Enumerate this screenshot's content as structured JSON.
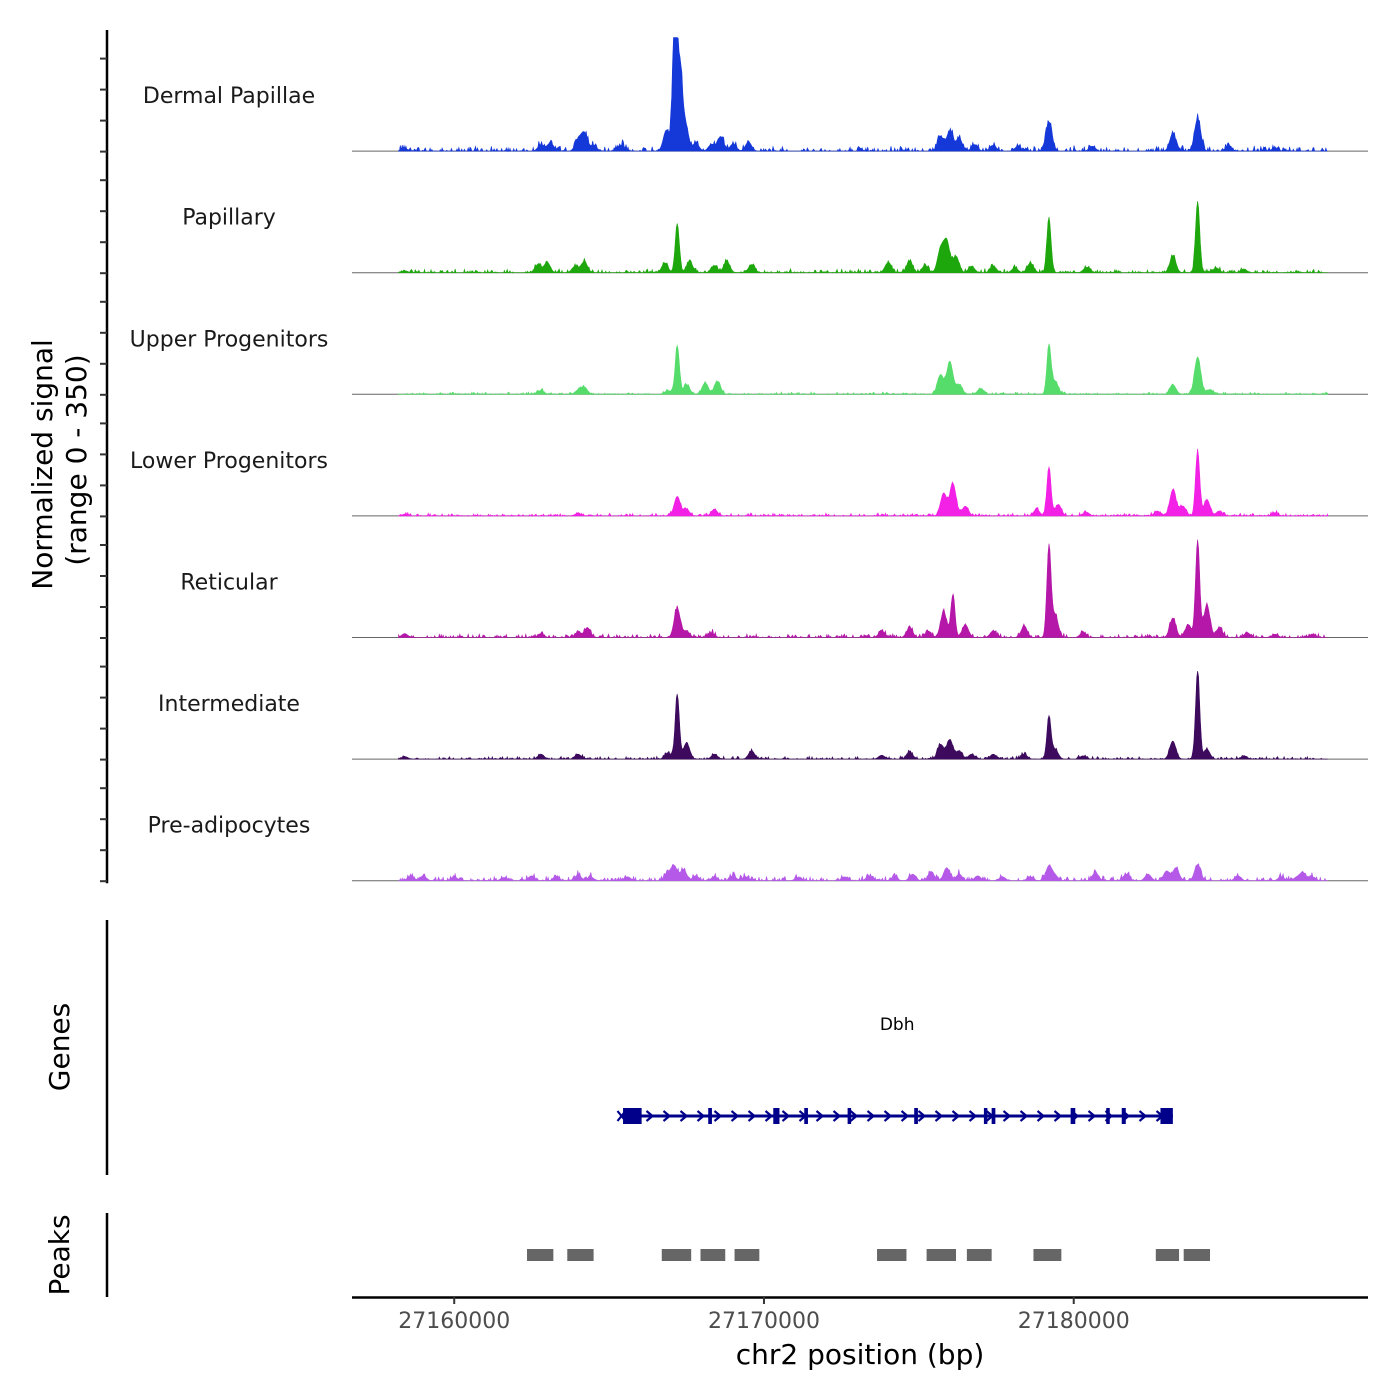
{
  "chart_data": {
    "type": "area",
    "title": "",
    "xlabel": "chr2 position (bp)",
    "ylabel": "Normalized signal\n(range 0 - 350)",
    "ylabel_lines": [
      "Normalized signal",
      "(range 0 - 350)"
    ],
    "ylim": [
      0,
      350
    ],
    "xlim": [
      27156700,
      27189500
    ],
    "x_ticks": [
      27160000,
      27170000,
      27180000
    ],
    "x_tick_labels": [
      "27160000",
      "27170000",
      "27180000"
    ],
    "series": [
      {
        "name": "Dermal Papillae",
        "color": "#1538d8",
        "peaks": [
          [
            27158400,
            8
          ],
          [
            27162800,
            20
          ],
          [
            27163100,
            25
          ],
          [
            27164000,
            35
          ],
          [
            27164200,
            55
          ],
          [
            27164500,
            18
          ],
          [
            27165400,
            18
          ],
          [
            27166850,
            65
          ],
          [
            27167100,
            200
          ],
          [
            27167150,
            350
          ],
          [
            27167300,
            220
          ],
          [
            27167450,
            90
          ],
          [
            27167800,
            25
          ],
          [
            27168300,
            20
          ],
          [
            27168600,
            45
          ],
          [
            27169000,
            22
          ],
          [
            27169500,
            28
          ],
          [
            27175700,
            45
          ],
          [
            27176000,
            62
          ],
          [
            27176300,
            40
          ],
          [
            27176800,
            20
          ],
          [
            27177400,
            18
          ],
          [
            27178200,
            15
          ],
          [
            27179200,
            90
          ],
          [
            27180600,
            15
          ],
          [
            27183200,
            55
          ],
          [
            27184000,
            100
          ],
          [
            27185000,
            15
          ],
          [
            27186500,
            10
          ]
        ],
        "noise": 12
      },
      {
        "name": "Papillary",
        "color": "#1ea70c",
        "peaks": [
          [
            27158400,
            6
          ],
          [
            27162700,
            25
          ],
          [
            27163000,
            32
          ],
          [
            27163900,
            20
          ],
          [
            27164200,
            35
          ],
          [
            27166800,
            30
          ],
          [
            27167200,
            150
          ],
          [
            27167600,
            35
          ],
          [
            27168400,
            22
          ],
          [
            27168800,
            35
          ],
          [
            27169600,
            25
          ],
          [
            27174000,
            30
          ],
          [
            27174700,
            35
          ],
          [
            27175200,
            22
          ],
          [
            27175700,
            70
          ],
          [
            27175900,
            95
          ],
          [
            27176200,
            50
          ],
          [
            27176700,
            20
          ],
          [
            27177400,
            20
          ],
          [
            27178100,
            15
          ],
          [
            27178600,
            30
          ],
          [
            27179200,
            168
          ],
          [
            27180400,
            15
          ],
          [
            27183200,
            50
          ],
          [
            27184000,
            220
          ],
          [
            27184600,
            15
          ],
          [
            27185500,
            10
          ]
        ],
        "noise": 8
      },
      {
        "name": "Upper Progenitors",
        "color": "#55dc6a",
        "peaks": [
          [
            27162800,
            12
          ],
          [
            27164000,
            12
          ],
          [
            27164200,
            22
          ],
          [
            27166900,
            12
          ],
          [
            27167200,
            150
          ],
          [
            27167500,
            30
          ],
          [
            27168100,
            35
          ],
          [
            27168500,
            40
          ],
          [
            27175700,
            60
          ],
          [
            27176000,
            100
          ],
          [
            27176300,
            30
          ],
          [
            27177000,
            18
          ],
          [
            27179200,
            150
          ],
          [
            27179400,
            40
          ],
          [
            27183200,
            30
          ],
          [
            27184000,
            115
          ],
          [
            27184400,
            15
          ]
        ],
        "noise": 5
      },
      {
        "name": "Lower Progenitors",
        "color": "#f221e5",
        "peaks": [
          [
            27158400,
            5
          ],
          [
            27164000,
            8
          ],
          [
            27167200,
            60
          ],
          [
            27167500,
            20
          ],
          [
            27168400,
            20
          ],
          [
            27175800,
            70
          ],
          [
            27176100,
            100
          ],
          [
            27176500,
            30
          ],
          [
            27178800,
            20
          ],
          [
            27179200,
            150
          ],
          [
            27179500,
            35
          ],
          [
            27180400,
            12
          ],
          [
            27182700,
            15
          ],
          [
            27183200,
            80
          ],
          [
            27183500,
            30
          ],
          [
            27184000,
            200
          ],
          [
            27184300,
            50
          ],
          [
            27184700,
            15
          ],
          [
            27186500,
            10
          ]
        ],
        "noise": 6
      },
      {
        "name": "Reticular",
        "color": "#b517a8",
        "peaks": [
          [
            27158400,
            12
          ],
          [
            27162800,
            12
          ],
          [
            27164000,
            15
          ],
          [
            27164300,
            30
          ],
          [
            27167200,
            90
          ],
          [
            27167500,
            20
          ],
          [
            27168300,
            15
          ],
          [
            27173800,
            20
          ],
          [
            27174700,
            30
          ],
          [
            27175300,
            20
          ],
          [
            27175800,
            80
          ],
          [
            27176100,
            130
          ],
          [
            27176500,
            40
          ],
          [
            27177400,
            20
          ],
          [
            27178400,
            35
          ],
          [
            27179200,
            280
          ],
          [
            27179400,
            70
          ],
          [
            27180300,
            15
          ],
          [
            27183200,
            60
          ],
          [
            27183700,
            40
          ],
          [
            27184000,
            300
          ],
          [
            27184300,
            100
          ],
          [
            27184700,
            30
          ],
          [
            27185600,
            15
          ],
          [
            27186500,
            10
          ],
          [
            27187700,
            10
          ]
        ],
        "noise": 8
      },
      {
        "name": "Intermediate",
        "color": "#3d0a5e",
        "peaks": [
          [
            27158400,
            8
          ],
          [
            27162800,
            15
          ],
          [
            27164000,
            15
          ],
          [
            27166900,
            20
          ],
          [
            27167200,
            200
          ],
          [
            27167500,
            50
          ],
          [
            27168400,
            15
          ],
          [
            27169600,
            25
          ],
          [
            27173800,
            12
          ],
          [
            27174700,
            22
          ],
          [
            27175700,
            45
          ],
          [
            27176000,
            60
          ],
          [
            27176300,
            25
          ],
          [
            27176700,
            15
          ],
          [
            27177400,
            15
          ],
          [
            27178400,
            15
          ],
          [
            27179200,
            130
          ],
          [
            27179400,
            30
          ],
          [
            27180300,
            10
          ],
          [
            27183200,
            55
          ],
          [
            27184000,
            270
          ],
          [
            27184300,
            30
          ],
          [
            27185500,
            10
          ]
        ],
        "noise": 6
      },
      {
        "name": "Pre-adipocytes",
        "color": "#b55ae8",
        "peaks": [
          [
            27158600,
            15
          ],
          [
            27159000,
            15
          ],
          [
            27160000,
            12
          ],
          [
            27161600,
            10
          ],
          [
            27162500,
            15
          ],
          [
            27163300,
            12
          ],
          [
            27164000,
            18
          ],
          [
            27164400,
            12
          ],
          [
            27165600,
            12
          ],
          [
            27166900,
            20
          ],
          [
            27167100,
            45
          ],
          [
            27167400,
            35
          ],
          [
            27167800,
            15
          ],
          [
            27168400,
            12
          ],
          [
            27169000,
            15
          ],
          [
            27169400,
            12
          ],
          [
            27171100,
            10
          ],
          [
            27172600,
            12
          ],
          [
            27173400,
            15
          ],
          [
            27174200,
            12
          ],
          [
            27174800,
            20
          ],
          [
            27175400,
            25
          ],
          [
            27175900,
            40
          ],
          [
            27176300,
            20
          ],
          [
            27176900,
            15
          ],
          [
            27177700,
            12
          ],
          [
            27178600,
            12
          ],
          [
            27179200,
            45
          ],
          [
            27179400,
            15
          ],
          [
            27180700,
            25
          ],
          [
            27181700,
            20
          ],
          [
            27182400,
            20
          ],
          [
            27183000,
            30
          ],
          [
            27183300,
            40
          ],
          [
            27184000,
            50
          ],
          [
            27185300,
            15
          ],
          [
            27186700,
            12
          ],
          [
            27187200,
            10
          ],
          [
            27187400,
            25
          ],
          [
            27187700,
            12
          ]
        ],
        "noise": 10
      }
    ],
    "genes": [
      {
        "name": "Dbh",
        "color": "#00008b",
        "start": 27165400,
        "end": 27183200,
        "strand": "+",
        "exons": [
          [
            27165450,
            27166050
          ],
          [
            27168200,
            27168320
          ],
          [
            27170300,
            27170500
          ],
          [
            27171300,
            27171420
          ],
          [
            27172700,
            27172800
          ],
          [
            27174850,
            27174970
          ],
          [
            27177100,
            27177180
          ],
          [
            27177350,
            27177470
          ],
          [
            27179900,
            27180050
          ],
          [
            27181050,
            27181150
          ],
          [
            27181550,
            27181680
          ],
          [
            27182800,
            27183200
          ]
        ]
      }
    ],
    "peaks_track": [
      [
        27162350,
        27163200
      ],
      [
        27163650,
        27164500
      ],
      [
        27166700,
        27167650
      ],
      [
        27167950,
        27168750
      ],
      [
        27169050,
        27169850
      ],
      [
        27173650,
        27174600
      ],
      [
        27175250,
        27176200
      ],
      [
        27176550,
        27177350
      ],
      [
        27178700,
        27179600
      ],
      [
        27182650,
        27183400
      ],
      [
        27183550,
        27184400
      ]
    ],
    "panel_labels": {
      "genes": "Genes",
      "peaks": "Peaks"
    }
  }
}
